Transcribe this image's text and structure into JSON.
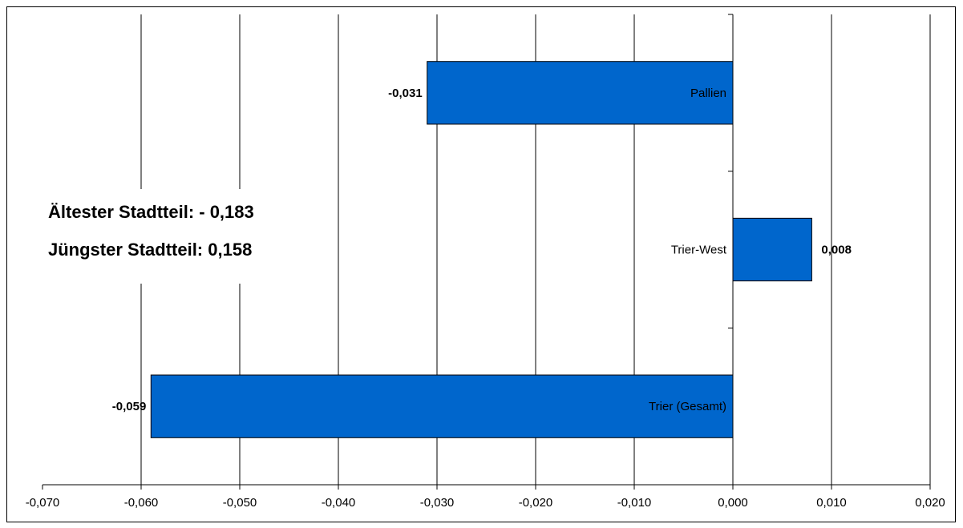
{
  "chart_data": {
    "type": "bar",
    "orientation": "horizontal",
    "categories": [
      "Pallien",
      "Trier-West",
      "Trier (Gesamt)"
    ],
    "values": [
      -0.031,
      0.008,
      -0.059
    ],
    "value_labels": [
      "-0,031",
      "0,008",
      "-0,059"
    ],
    "xlim": [
      -0.07,
      0.02
    ],
    "x_ticks": [
      -0.07,
      -0.06,
      -0.05,
      -0.04,
      -0.03,
      -0.02,
      -0.01,
      0.0,
      0.01,
      0.02
    ],
    "x_tick_labels": [
      "-0,070",
      "-0,060",
      "-0,050",
      "-0,040",
      "-0,030",
      "-0,020",
      "-0,010",
      "0,000",
      "0,010",
      "0,020"
    ],
    "title": "",
    "xlabel": "",
    "ylabel": "",
    "grid": "vertical",
    "legend": "none",
    "bar_color": "#0066CC",
    "annotations": [
      "Ältester Stadtteil:  - 0,183",
      "Jüngster Stadtteil:  0,158"
    ]
  }
}
